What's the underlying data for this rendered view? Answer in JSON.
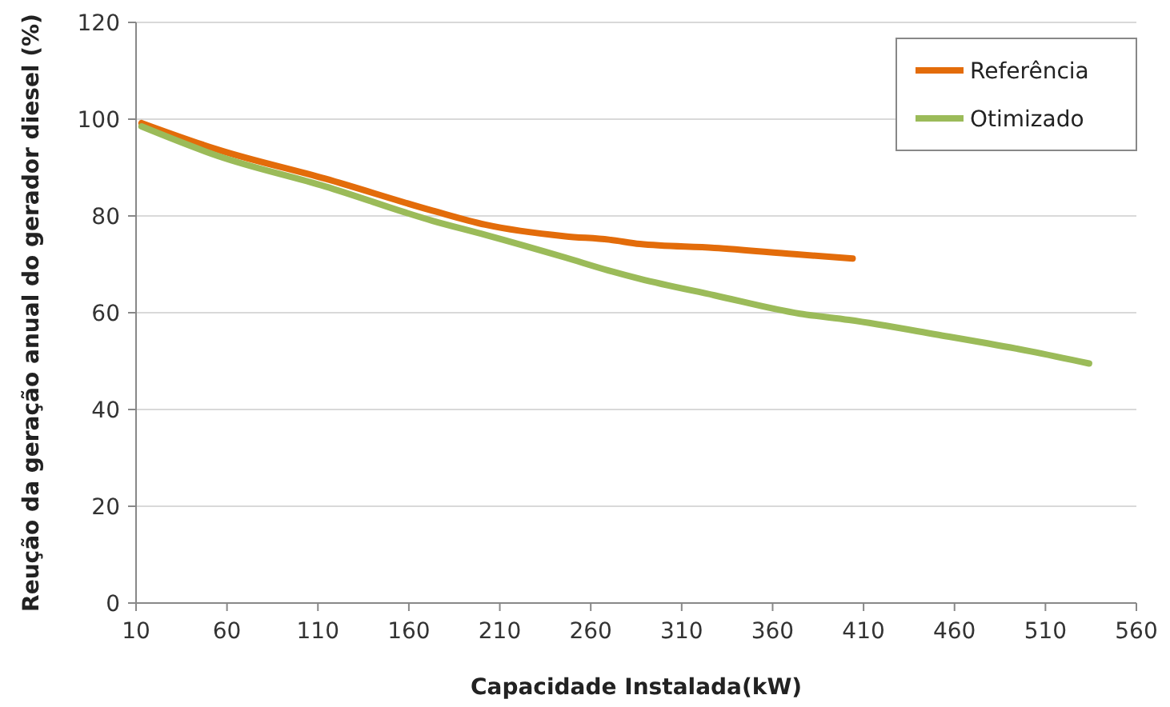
{
  "chart_data": {
    "type": "line",
    "xlabel": "Capacidade Instalada(kW)",
    "ylabel": "Reução da geração anual do gerador diesel  (%)",
    "xlim": [
      10,
      560
    ],
    "xticks": [
      10,
      60,
      110,
      160,
      210,
      260,
      310,
      360,
      410,
      460,
      510,
      560
    ],
    "ylim": [
      0,
      120
    ],
    "yticks": [
      0,
      20,
      40,
      60,
      80,
      100,
      120
    ],
    "grid": "y",
    "legend": "top right",
    "marker": "none",
    "line_style": "solid",
    "series": [
      {
        "name": "Referência",
        "color": "#e36c0a",
        "x": [
          13,
          55,
          114,
          173,
          202,
          246,
          270,
          287,
          328,
          372,
          404
        ],
        "values": [
          99.2,
          93.7,
          87.7,
          81.1,
          78.2,
          75.8,
          75.1,
          74.2,
          73.4,
          72.1,
          71.2
        ]
      },
      {
        "name": "Otimizado",
        "color": "#9bbb59",
        "x": [
          13,
          55,
          114,
          173,
          202,
          246,
          270,
          287,
          328,
          375,
          402,
          450,
          502,
          534
        ],
        "values": [
          98.5,
          92.4,
          86.1,
          79,
          76.1,
          71.4,
          68.7,
          67,
          63.6,
          59.8,
          58.5,
          55.5,
          52,
          49.5
        ]
      }
    ]
  }
}
